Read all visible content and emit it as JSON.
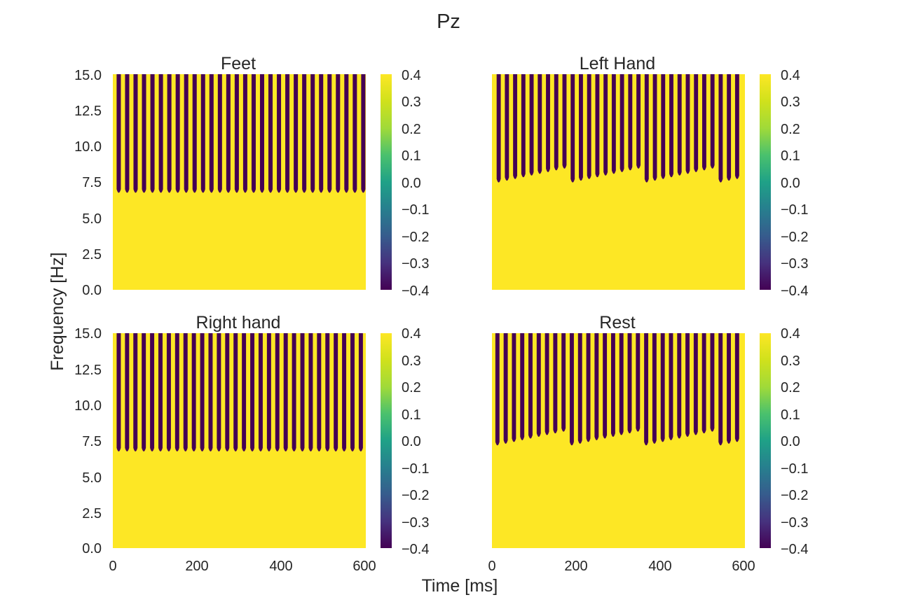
{
  "chart_data": {
    "type": "heatmap",
    "title": "Pz",
    "xlabel": "Time [ms]",
    "ylabel": "Frequency [Hz]",
    "xlim": [
      0,
      600
    ],
    "ylim": [
      0,
      15
    ],
    "x_ticks": [
      "0",
      "200",
      "400",
      "600"
    ],
    "y_ticks": [
      "0.0",
      "2.5",
      "5.0",
      "7.5",
      "10.0",
      "12.5",
      "15.0"
    ],
    "colorbar": {
      "colormap": "viridis",
      "range": [
        -0.4,
        0.4
      ],
      "ticks": [
        "0.4",
        "0.3",
        "0.2",
        "0.1",
        "0.0",
        "−0.1",
        "−0.2",
        "−0.3",
        "−0.4"
      ]
    },
    "colors": {
      "high": "#fde725",
      "low": "#440154"
    },
    "grid": false,
    "panels": [
      {
        "title": "Feet",
        "stripe_count": 30,
        "stripe_start_ms": 14,
        "stripe_spacing_ms": 20,
        "stripe_bottom_hz": 6.7
      },
      {
        "title": "Left Hand",
        "stripe_count": 30,
        "stripe_start_ms": 16,
        "stripe_spacing_ms": 19.5,
        "stripe_bottom_hz": 7.9
      },
      {
        "title": "Right hand",
        "stripe_count": 30,
        "stripe_start_ms": 14,
        "stripe_spacing_ms": 19.8,
        "stripe_bottom_hz": 6.7
      },
      {
        "title": "Rest",
        "stripe_count": 30,
        "stripe_start_ms": 13,
        "stripe_spacing_ms": 19.6,
        "stripe_bottom_hz": 7.6
      }
    ]
  }
}
